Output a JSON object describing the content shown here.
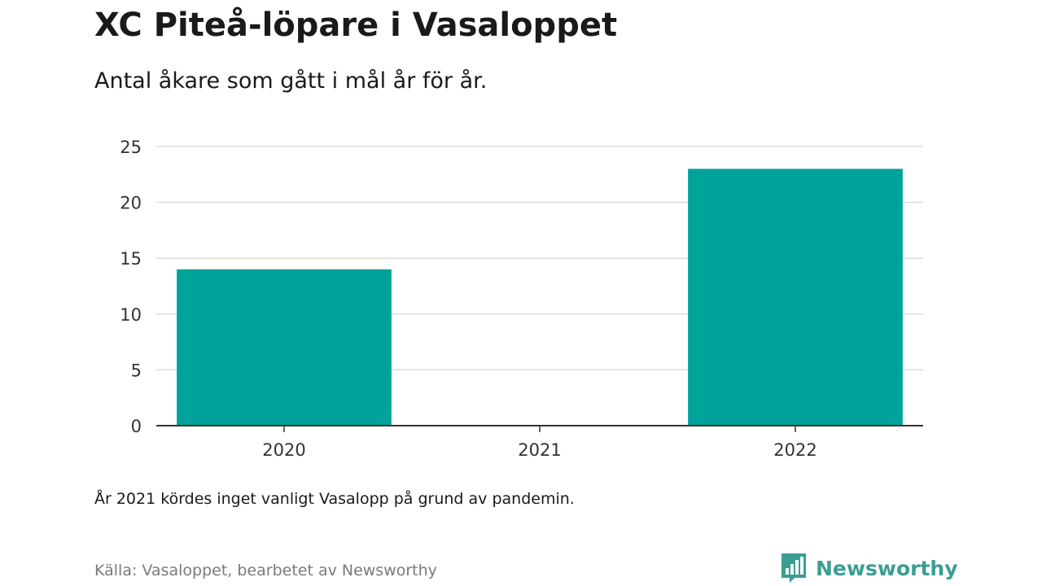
{
  "header": {
    "title": "XC Piteå-löpare i Vasaloppet",
    "subtitle": "Antal åkare som gått i mål år för år."
  },
  "chart_data": {
    "type": "bar",
    "categories": [
      "2020",
      "2021",
      "2022"
    ],
    "values": [
      14,
      0,
      23
    ],
    "ylim": [
      0,
      25
    ],
    "yticks": [
      0,
      5,
      10,
      15,
      20,
      25
    ],
    "grid": true,
    "bar_color": "#00a39a",
    "gridline_color": "#dddddd",
    "axis_color": "#333333"
  },
  "footer": {
    "note": "År 2021 kördes inget vanligt Vasalopp på grund av pandemin.",
    "source": "Källa: Vasaloppet, bearbetet av Newsworthy",
    "brand_name": "Newsworthy",
    "brand_color": "#3a9e93",
    "brand_icon": "newsworthy-logo-icon"
  }
}
